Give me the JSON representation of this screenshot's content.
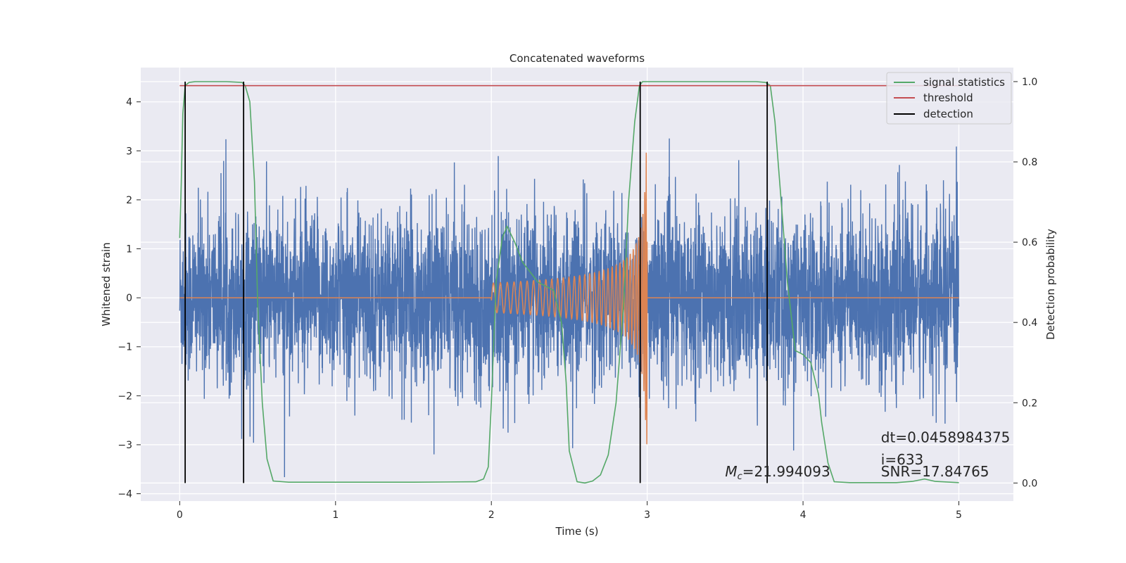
{
  "chart_data": {
    "type": "line",
    "title": "Concatenated waveforms",
    "xlabel": "Time (s)",
    "ylabel": "Whitened strain",
    "ylabel_right": "Detection probability",
    "xlim": [
      -0.25,
      5.35
    ],
    "ylim": [
      -4.15,
      4.7
    ],
    "ylim_right": [
      -0.045,
      1.035
    ],
    "x_ticks": [
      0,
      1,
      2,
      3,
      4,
      5
    ],
    "x_tick_labels": [
      "0",
      "1",
      "2",
      "3",
      "4",
      "5"
    ],
    "y_ticks": [
      -4,
      -3,
      -2,
      -1,
      0,
      1,
      2,
      3,
      4
    ],
    "y_tick_labels": [
      "−4",
      "−3",
      "−2",
      "−1",
      "0",
      "1",
      "2",
      "3",
      "4"
    ],
    "y_right_ticks": [
      0.0,
      0.2,
      0.4,
      0.6,
      0.8,
      1.0
    ],
    "y_right_tick_labels": [
      "0.0",
      "0.2",
      "0.4",
      "0.6",
      "0.8",
      "1.0"
    ],
    "grid": true,
    "legend_position": "top-right",
    "background": "#eaeaf2",
    "series": [
      {
        "key": "strain",
        "color": "#4c72b0",
        "axis": "left",
        "x_range": [
          0,
          5
        ],
        "noise_sigma": 0.85,
        "noise_max": 4.3
      },
      {
        "key": "template",
        "color": "#dd8452",
        "axis": "left",
        "chirp_start": 2.0,
        "chirp_end": 3.0,
        "start_amplitude": 0.3,
        "peak_amplitude": 3.0
      },
      {
        "key": "signal_statistics",
        "name": "signal statistics",
        "color": "#55a868",
        "axis": "right",
        "x": [
          0.0,
          0.01,
          0.02,
          0.035,
          0.06,
          0.1,
          0.15,
          0.3,
          0.4,
          0.42,
          0.45,
          0.48,
          0.5,
          0.53,
          0.56,
          0.6,
          0.7,
          1.0,
          1.5,
          1.9,
          1.95,
          1.98,
          2.0,
          2.03,
          2.07,
          2.1,
          2.15,
          2.2,
          2.3,
          2.4,
          2.45,
          2.48,
          2.5,
          2.55,
          2.6,
          2.65,
          2.7,
          2.75,
          2.8,
          2.85,
          2.88,
          2.92,
          2.95,
          2.97,
          3.0,
          3.3,
          3.7,
          3.76,
          3.79,
          3.82,
          3.86,
          3.9,
          3.95,
          4.0,
          4.05,
          4.1,
          4.12,
          4.16,
          4.2,
          4.3,
          4.6,
          4.7,
          4.78,
          4.85,
          5.0
        ],
        "y": [
          0.61,
          0.75,
          0.92,
          0.99,
          0.998,
          1.0,
          1.0,
          1.0,
          0.998,
          0.99,
          0.95,
          0.75,
          0.45,
          0.2,
          0.06,
          0.005,
          0.002,
          0.002,
          0.002,
          0.003,
          0.01,
          0.04,
          0.2,
          0.5,
          0.61,
          0.64,
          0.6,
          0.55,
          0.5,
          0.48,
          0.4,
          0.25,
          0.08,
          0.003,
          0.0,
          0.005,
          0.02,
          0.07,
          0.2,
          0.45,
          0.7,
          0.9,
          0.99,
          1.0,
          1.0,
          1.0,
          1.0,
          0.998,
          0.99,
          0.9,
          0.7,
          0.5,
          0.33,
          0.32,
          0.3,
          0.22,
          0.15,
          0.05,
          0.003,
          0.001,
          0.001,
          0.004,
          0.01,
          0.004,
          0.001
        ]
      },
      {
        "key": "threshold",
        "name": "threshold",
        "color": "#c44e52",
        "axis": "right",
        "x": [
          0,
          5
        ],
        "y": [
          0.99,
          0.99
        ]
      },
      {
        "key": "detection",
        "name": "detection",
        "color": "#000000",
        "axis": "right",
        "vlines": [
          0.035,
          0.41,
          2.955,
          3.77
        ],
        "ymin": 0.0,
        "ymax": 1.0
      }
    ],
    "annotations": [
      {
        "key": "mc",
        "text": "=21.994093",
        "symbol": "M",
        "subscript": "c",
        "x": 3.5,
        "y": -3.65
      },
      {
        "key": "dt",
        "text": "dt=0.0458984375",
        "x": 4.5,
        "y": -2.95
      },
      {
        "key": "i",
        "text": " i=633",
        "x": 4.5,
        "y": -3.4
      },
      {
        "key": "snr",
        "text": "SNR=17.84765",
        "x": 4.5,
        "y": -3.65
      }
    ]
  }
}
